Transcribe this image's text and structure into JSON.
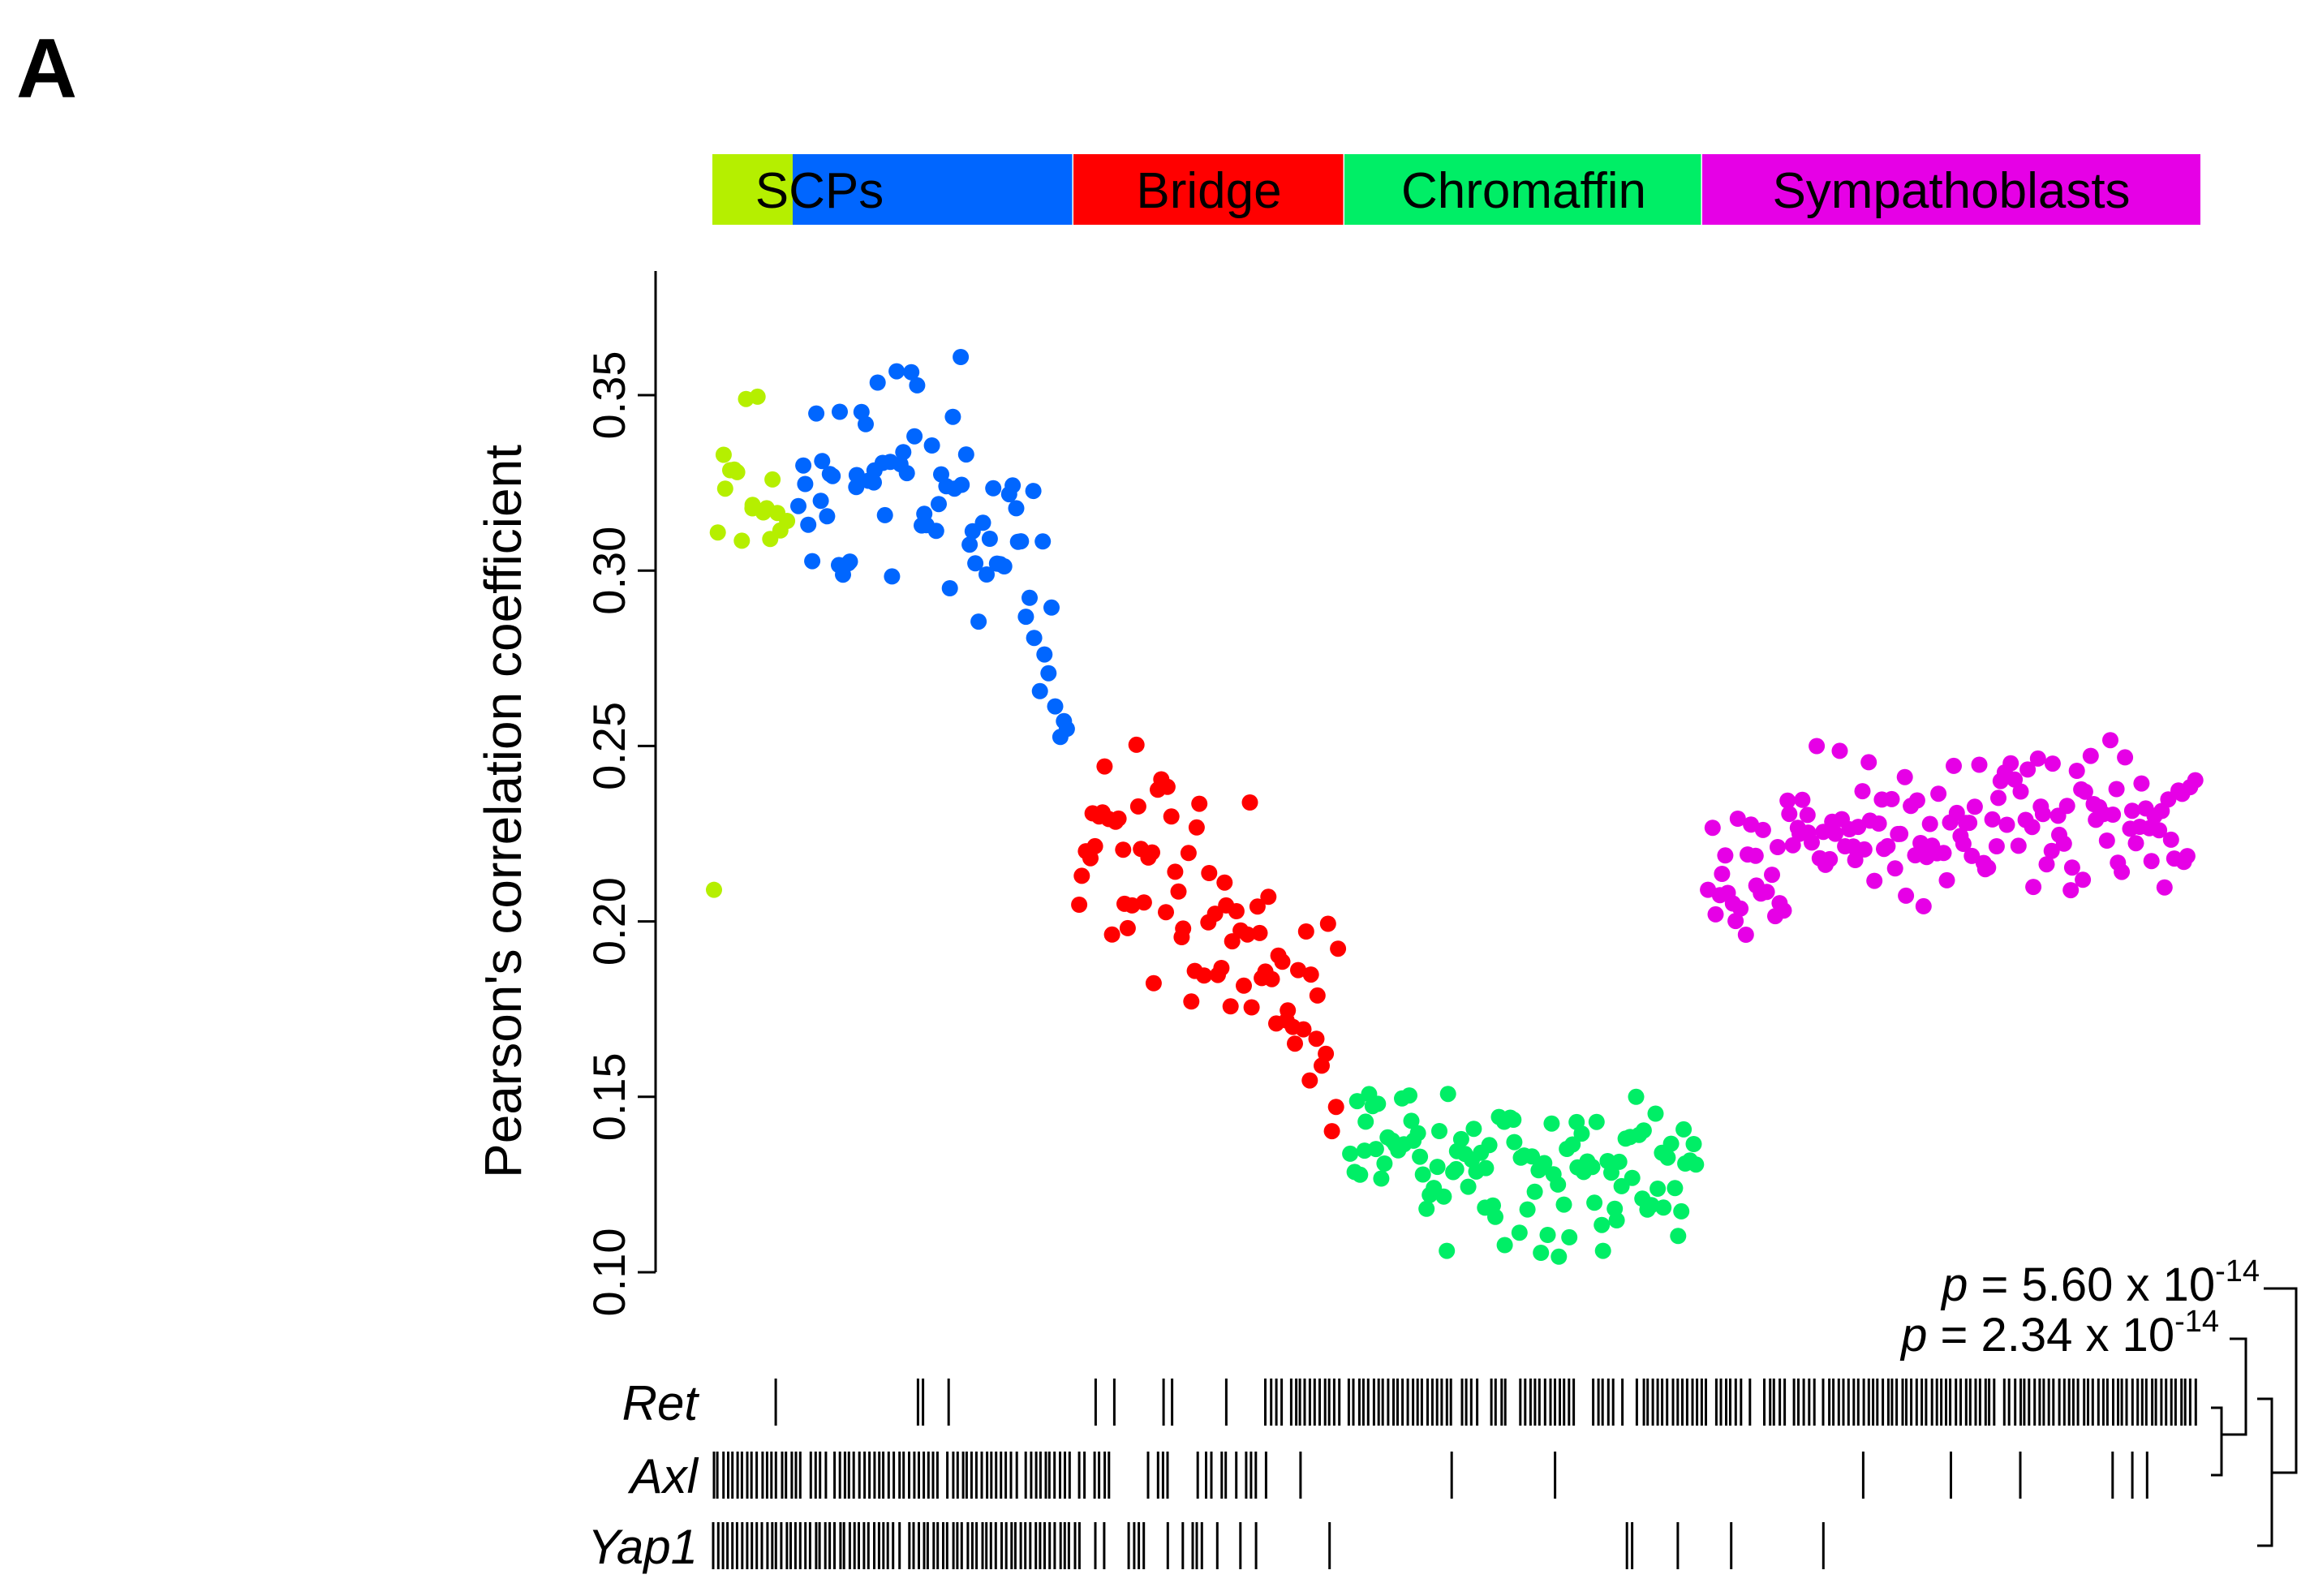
{
  "panel_label": "A",
  "chart_data": {
    "type": "scatter",
    "title": "",
    "xlabel": "",
    "ylabel": "Pearson's correlation coefficient",
    "ylim": [
      0.09,
      0.39
    ],
    "yticks": [
      "0.10",
      "0.15",
      "0.20",
      "0.25",
      "0.30",
      "0.35"
    ],
    "grid": false,
    "legend": "none",
    "groups": [
      {
        "name": "SCPs",
        "color": "#b5ef00",
        "n": 18,
        "seed": 11,
        "trend": [
          [
            0,
            0.33
          ],
          [
            1,
            0.32
          ]
        ],
        "spread": 0.02
      },
      {
        "name": "SCPs",
        "color": "#0066ff",
        "n": 78,
        "seed": 23,
        "trend": [
          [
            0,
            0.32
          ],
          [
            0.5,
            0.33
          ],
          [
            0.85,
            0.31
          ],
          [
            1,
            0.24
          ]
        ],
        "spread": 0.028
      },
      {
        "name": "Bridge",
        "color": "#ff0000",
        "n": 80,
        "seed": 37,
        "trend": [
          [
            0,
            0.225
          ],
          [
            0.5,
            0.205
          ],
          [
            1,
            0.165
          ]
        ],
        "spread": 0.025
      },
      {
        "name": "Chromaffin",
        "color": "#00ee66",
        "n": 110,
        "seed": 53,
        "trend": [
          [
            0,
            0.15
          ],
          [
            0.35,
            0.125
          ],
          [
            0.7,
            0.13
          ],
          [
            1,
            0.125
          ]
        ],
        "spread": 0.02
      },
      {
        "name": "Sympathoblasts",
        "color": "#e600e6",
        "n": 150,
        "seed": 71,
        "trend": [
          [
            0,
            0.21
          ],
          [
            0.2,
            0.225
          ],
          [
            1,
            0.23
          ]
        ],
        "spread": 0.016
      }
    ],
    "outliers": [
      {
        "group": 0,
        "x": 0.0,
        "y": 0.209
      }
    ],
    "category_bar": [
      {
        "label": "",
        "color": "#b5ef00"
      },
      {
        "label": "SCPs",
        "color": "#0066ff"
      },
      {
        "label": "Bridge",
        "color": "#ff0000"
      },
      {
        "label": "Chromaffin",
        "color": "#00ee66"
      },
      {
        "label": "Sympathoblasts",
        "color": "#e600e6"
      }
    ],
    "gene_tracks": [
      {
        "name": "Ret",
        "density": [
          0.05,
          0.08,
          0.15,
          0.9,
          0.75,
          0.85,
          0.95,
          0.98
        ]
      },
      {
        "name": "Axl",
        "density": [
          0.95,
          0.95,
          0.5,
          0.06,
          0.03,
          0.04,
          0.03,
          0.04
        ]
      },
      {
        "name": "Yap1",
        "density": [
          0.95,
          0.95,
          0.3,
          0.05,
          0.03,
          0.05,
          0.04,
          0.02
        ]
      }
    ],
    "annotations": [
      {
        "pair": "Ret vs Axl",
        "p": "p",
        "eq": " = 2.34 x 10",
        "exp": "-14"
      },
      {
        "pair": "Ret vs Yap1",
        "p": "p",
        "eq": " = 5.60 x 10",
        "exp": "-14"
      }
    ]
  }
}
